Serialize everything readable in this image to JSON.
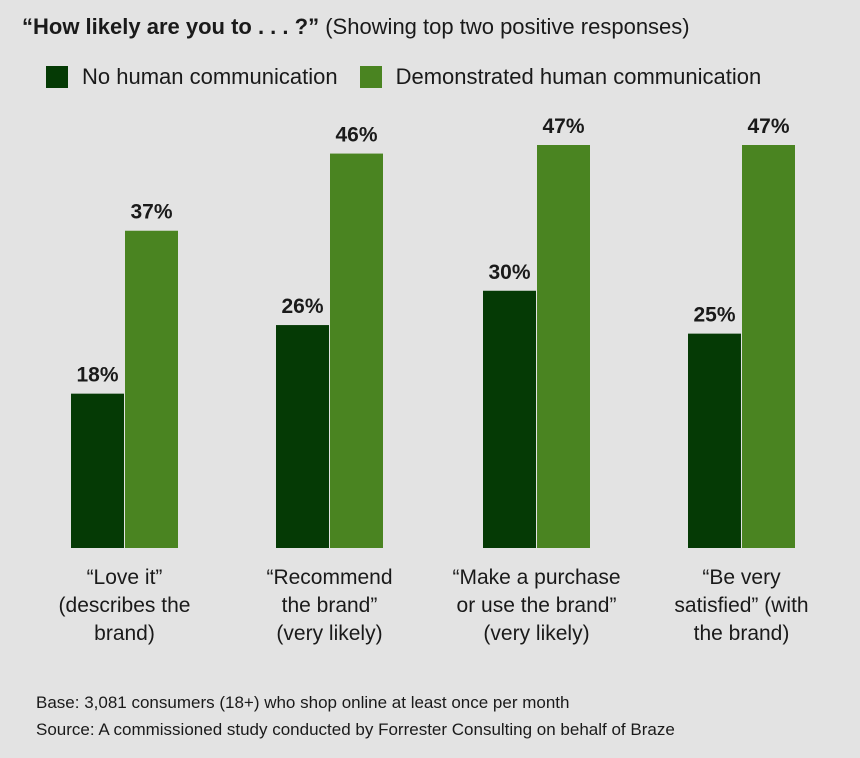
{
  "header": {
    "title_bold": "“How likely are you to . . . ?”",
    "title_rest": "(Showing top two positive responses)"
  },
  "legend": [
    {
      "label": "No human communication",
      "color": "#053a05"
    },
    {
      "label": "Demonstrated human communication",
      "color": "#4a8421"
    }
  ],
  "chart_data": {
    "type": "bar",
    "title": "“How likely are you to . . . ?” (Showing top two positive responses)",
    "categories": [
      [
        "“Love it”",
        "(describes the",
        "brand)"
      ],
      [
        "“Recommend",
        "the brand”",
        "(very likely)"
      ],
      [
        "“Make a purchase",
        "or use the brand”",
        "(very likely)"
      ],
      [
        "“Be very",
        "satisfied” (with",
        "the brand)"
      ]
    ],
    "series": [
      {
        "name": "No human communication",
        "color": "#053a05",
        "values": [
          18,
          26,
          30,
          25
        ],
        "labels": [
          "18%",
          "26%",
          "30%",
          "25%"
        ]
      },
      {
        "name": "Demonstrated human communication",
        "color": "#4a8421",
        "values": [
          37,
          46,
          47,
          47
        ],
        "labels": [
          "37%",
          "46%",
          "47%",
          "47%"
        ]
      }
    ],
    "ylim": [
      0,
      47
    ],
    "xlabel": "",
    "ylabel": ""
  },
  "footer": {
    "base": "Base: 3,081 consumers (18+) who shop online at least once per month",
    "source": "Source: A commissioned study conducted by Forrester Consulting on behalf of Braze"
  }
}
